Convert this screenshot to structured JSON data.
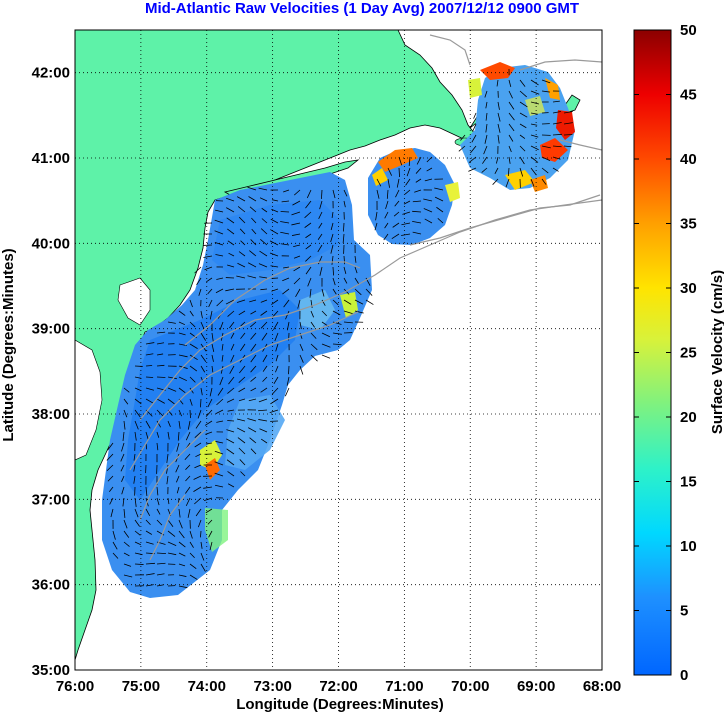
{
  "title": "Mid-Atlantic Raw Velocities (1 Day Avg) 2007/12/12 0900 GMT",
  "colors": {
    "land": "#5ef2a8",
    "bathymetry": "#9a9a9a",
    "title": "#0000ff",
    "grid": "#000000"
  },
  "chart_data": {
    "type": "heatmap",
    "xlabel": "Longitude (Degrees:Minutes)",
    "ylabel": "Latitude (Degrees:Minutes)",
    "xlim": [
      -76,
      -68
    ],
    "ylim": [
      35,
      42.5
    ],
    "x_ticks": [
      "76:00",
      "75:00",
      "74:00",
      "73:00",
      "72:00",
      "71:00",
      "70:00",
      "69:00",
      "68:00"
    ],
    "y_ticks": [
      "35:00",
      "36:00",
      "37:00",
      "38:00",
      "39:00",
      "40:00",
      "41:00",
      "42:00"
    ],
    "grid": true,
    "colorbar": {
      "label": "Surface Velocity (cm/s)",
      "range": [
        0,
        50
      ],
      "ticks": [
        "0",
        "5",
        "10",
        "15",
        "20",
        "25",
        "30",
        "35",
        "40",
        "45",
        "50"
      ],
      "colormap": "jet"
    }
  }
}
